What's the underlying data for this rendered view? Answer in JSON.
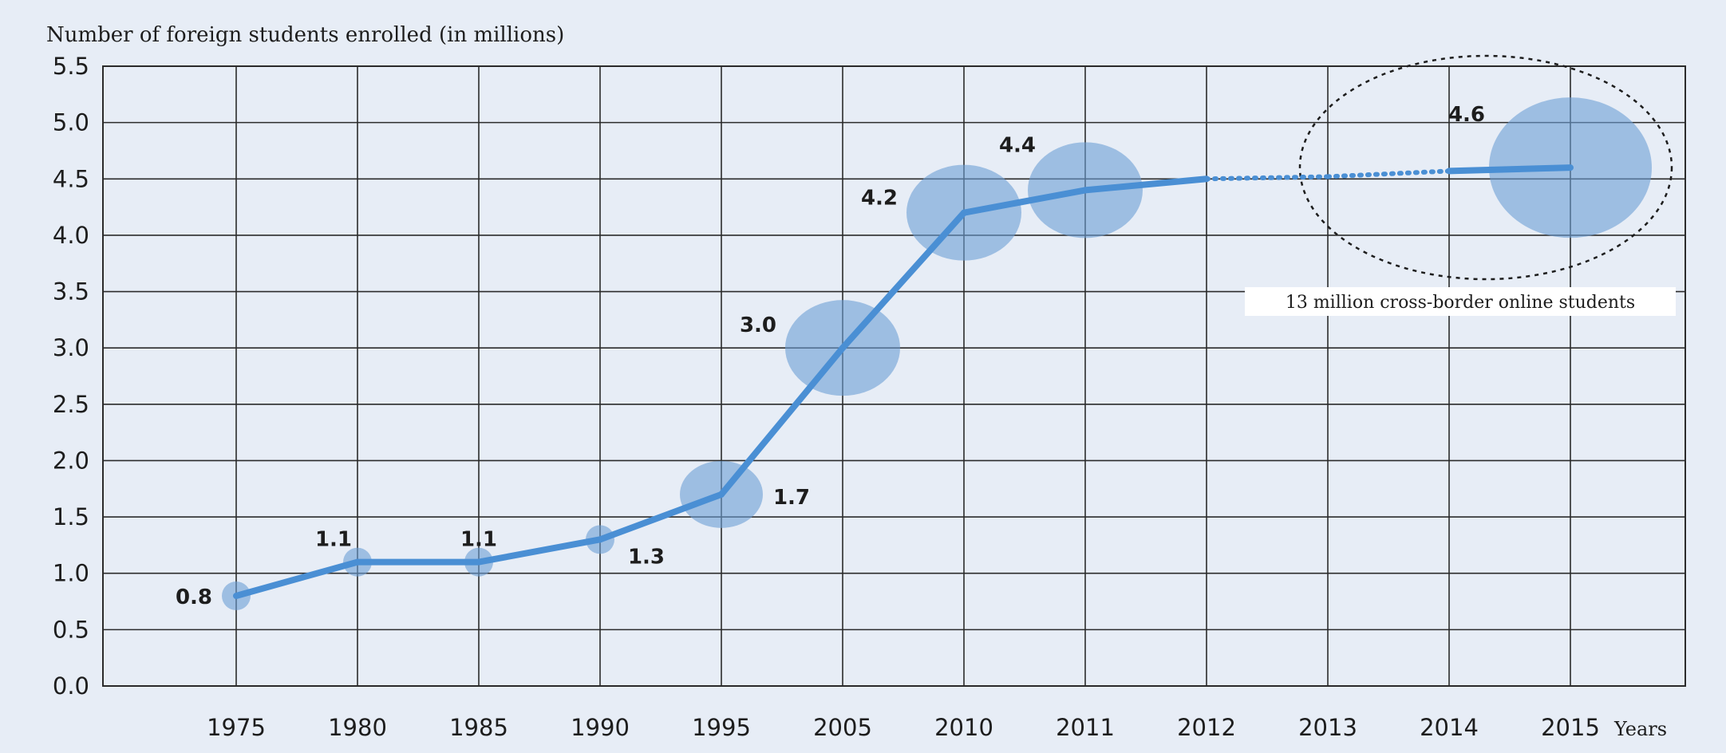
{
  "chart_data": {
    "type": "line",
    "ylabel": "Number of foreign students enrolled (in millions)",
    "xlabel": "Years",
    "categories": [
      "1975",
      "1980",
      "1985",
      "1990",
      "1995",
      "2005",
      "2010",
      "2011",
      "2012",
      "2013",
      "2014",
      "2015"
    ],
    "series": [
      {
        "values": [
          0.8,
          1.1,
          1.1,
          1.3,
          1.7,
          3.0,
          4.2,
          4.4,
          4.5,
          4.52,
          4.57,
          4.6
        ],
        "style": [
          "solid",
          "solid",
          "solid",
          "solid",
          "solid",
          "solid",
          "solid",
          "solid",
          "dotted",
          "dotted",
          "solid"
        ]
      }
    ],
    "point_labels": [
      {
        "category": "1975",
        "text": "0.8",
        "bubble": "small"
      },
      {
        "category": "1980",
        "text": "1.1",
        "bubble": "small"
      },
      {
        "category": "1985",
        "text": "1.1",
        "bubble": "small"
      },
      {
        "category": "1990",
        "text": "1.3",
        "bubble": "small"
      },
      {
        "category": "1995",
        "text": "1.7",
        "bubble": "medium"
      },
      {
        "category": "2005",
        "text": "3.0",
        "bubble": "large"
      },
      {
        "category": "2010",
        "text": "4.2",
        "bubble": "large"
      },
      {
        "category": "2011",
        "text": "4.4",
        "bubble": "large"
      },
      {
        "category": "2015",
        "text": "4.6",
        "bubble": "xlarge"
      }
    ],
    "yticks": [
      "0.0",
      "0.5",
      "1.0",
      "1.5",
      "2.0",
      "2.5",
      "3.0",
      "3.5",
      "4.0",
      "4.5",
      "5.0",
      "5.5"
    ],
    "ylim": [
      0,
      5.5
    ],
    "grid": true,
    "annotation": "13 million cross-border online students",
    "colors": {
      "line": "#4a8fd4",
      "bubble": "#6d9fd6",
      "grid": "#2b2b2b",
      "background": "#e7edf6"
    }
  }
}
